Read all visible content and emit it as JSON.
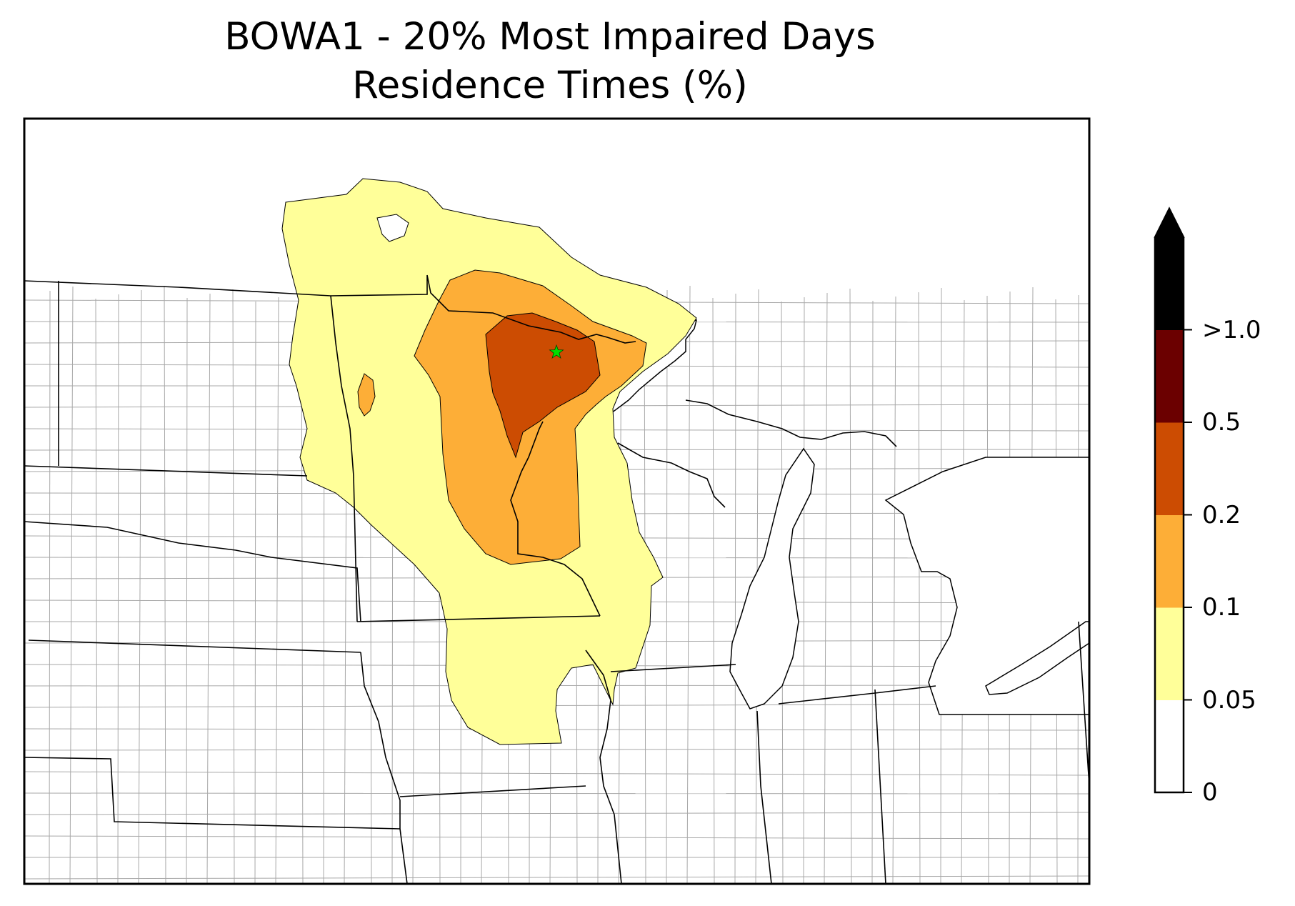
{
  "title": {
    "line1": "BOWA1 - 20% Most Impaired Days",
    "line2": "Residence Times (%)"
  },
  "map": {
    "site_marker": {
      "symbol": "star",
      "color": "#00dd00"
    },
    "contour_levels": [
      {
        "min": 0.05,
        "max": 0.1,
        "color": "#ffff99"
      },
      {
        "min": 0.1,
        "max": 0.2,
        "color": "#fdae37"
      },
      {
        "min": 0.2,
        "max": 0.5,
        "color": "#cc4c02"
      },
      {
        "min": 0.5,
        "max": 1.0,
        "color": "#6b0000"
      }
    ]
  },
  "colorbar": {
    "extend": "max",
    "tick_labels": [
      "0",
      "0.05",
      "0.1",
      "0.2",
      "0.5",
      ">1.0"
    ],
    "bands": [
      {
        "label": "0 - 0.05",
        "color": "#ffffff"
      },
      {
        "label": "0.05 - 0.1",
        "color": "#ffff99"
      },
      {
        "label": "0.1 - 0.2",
        "color": "#fdae37"
      },
      {
        "label": "0.2 - 0.5",
        "color": "#cc4c02"
      },
      {
        "label": "0.5 - 1.0",
        "color": "#6b0000"
      },
      {
        "label": ">1.0",
        "color": "#000000"
      }
    ]
  }
}
